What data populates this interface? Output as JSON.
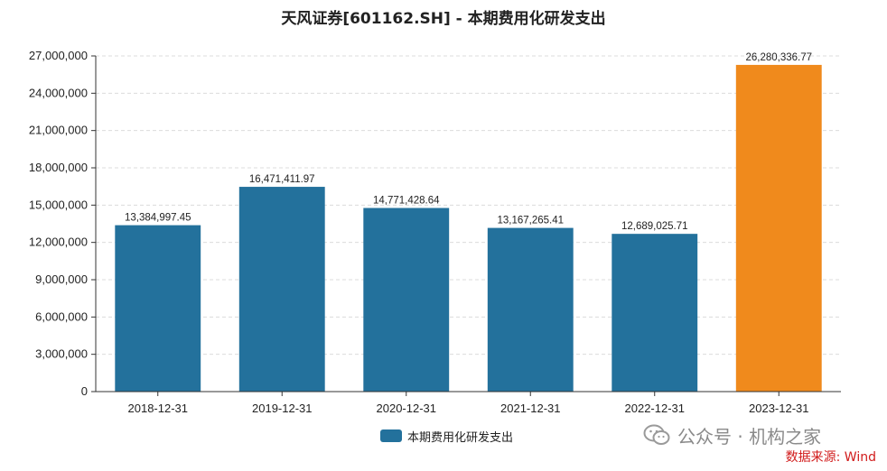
{
  "colors": {
    "bar_default": "#23719c",
    "bar_highlight": "#f08a1c",
    "grid": "#dcdcdc",
    "axis": "#333333",
    "source_text": "#d11b1b"
  },
  "watermark": {
    "text": "公众号 · 机构之家",
    "icon": "wechat-icon"
  },
  "source": "数据来源: Wind",
  "chart_data": {
    "type": "bar",
    "title": "天风证券[601162.SH] - 本期费用化研发支出",
    "categories": [
      "2018-12-31",
      "2019-12-31",
      "2020-12-31",
      "2021-12-31",
      "2022-12-31",
      "2023-12-31"
    ],
    "series": [
      {
        "name": "本期费用化研发支出",
        "values": [
          13384997.45,
          16471411.97,
          14771428.64,
          13167265.41,
          12689025.71,
          26280336.77
        ],
        "value_labels": [
          "13,384,997.45",
          "16,471,411.97",
          "14,771,428.64",
          "13,167,265.41",
          "12,689,025.71",
          "26,280,336.77"
        ]
      }
    ],
    "highlight_index": 5,
    "ylim": [
      0,
      27000000
    ],
    "yticks": [
      0,
      3000000,
      6000000,
      9000000,
      12000000,
      15000000,
      18000000,
      21000000,
      24000000,
      27000000
    ],
    "ytick_labels": [
      "0",
      "3,000,000",
      "6,000,000",
      "9,000,000",
      "12,000,000",
      "15,000,000",
      "18,000,000",
      "21,000,000",
      "24,000,000",
      "27,000,000"
    ],
    "xlabel": "",
    "ylabel": "",
    "grid": true,
    "legend_position": "bottom"
  }
}
